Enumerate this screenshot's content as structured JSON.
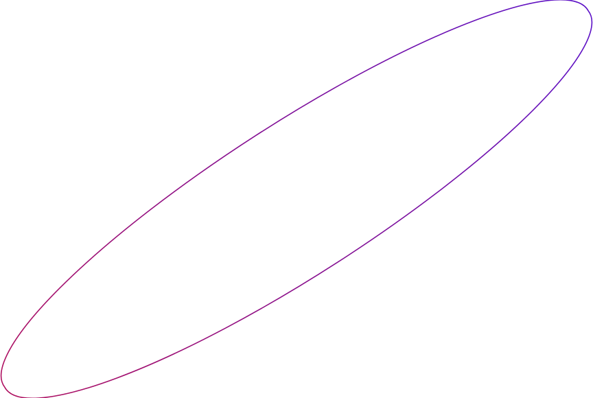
{
  "shape": {
    "kind": "ellipse",
    "fill": "none",
    "stroke_gradient": {
      "start_color": "#b0105e",
      "end_color": "#5a10c8"
    }
  }
}
